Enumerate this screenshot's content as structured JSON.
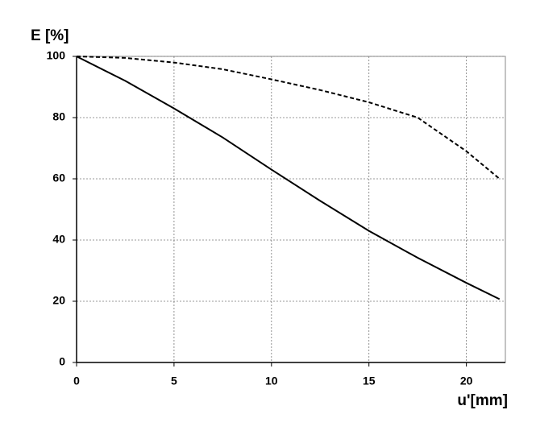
{
  "chart_data": {
    "type": "line",
    "y_label": "E [%]",
    "x_label": "u'[mm]",
    "x": [
      0,
      2.5,
      5,
      7.5,
      10,
      12.5,
      15,
      17.5,
      20,
      21.7
    ],
    "series": [
      {
        "color": "#000000",
        "style": "solid",
        "values": [
          100,
          92,
          83,
          73.5,
          63,
          52.8,
          43,
          34.2,
          26,
          20.7
        ]
      },
      {
        "color": "#000000",
        "style": "dashed",
        "values": [
          100,
          99.5,
          98,
          95.8,
          92.5,
          89,
          85,
          80,
          69,
          60
        ]
      }
    ],
    "xlim": [
      0,
      22
    ],
    "xticks": [
      0,
      5,
      10,
      15,
      20
    ],
    "ylim": [
      0,
      100
    ],
    "yticks": [
      0,
      20,
      40,
      60,
      80,
      100
    ],
    "grid": true
  }
}
